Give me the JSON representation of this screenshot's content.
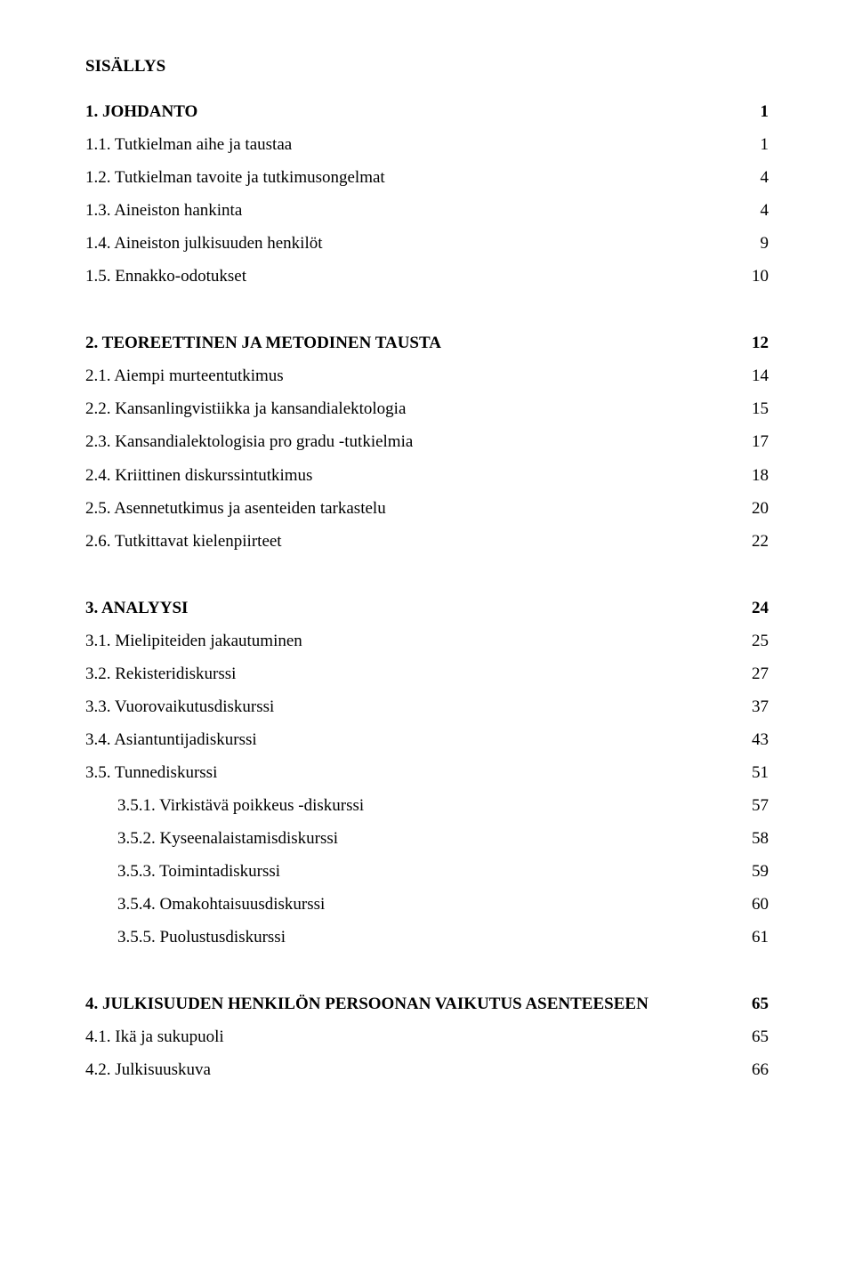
{
  "toc_title": "SISÄLLYS",
  "entries": [
    {
      "label": "1. JOHDANTO",
      "page": "1",
      "bold": true,
      "indent": false,
      "gap_before": false
    },
    {
      "label": "1.1. Tutkielman aihe ja taustaa",
      "page": "1",
      "bold": false,
      "indent": false,
      "gap_before": false
    },
    {
      "label": "1.2. Tutkielman tavoite ja tutkimusongelmat",
      "page": "4",
      "bold": false,
      "indent": false,
      "gap_before": false
    },
    {
      "label": "1.3. Aineiston hankinta",
      "page": "4",
      "bold": false,
      "indent": false,
      "gap_before": false
    },
    {
      "label": "1.4. Aineiston julkisuuden henkilöt",
      "page": "9",
      "bold": false,
      "indent": false,
      "gap_before": false
    },
    {
      "label": "1.5. Ennakko-odotukset",
      "page": "10",
      "bold": false,
      "indent": false,
      "gap_before": false
    },
    {
      "label": "2. TEOREETTINEN JA METODINEN TAUSTA",
      "page": "12",
      "bold": true,
      "indent": false,
      "gap_before": true
    },
    {
      "label": "2.1. Aiempi murteentutkimus",
      "page": "14",
      "bold": false,
      "indent": false,
      "gap_before": false
    },
    {
      "label": "2.2. Kansanlingvistiikka ja kansandialektologia",
      "page": "15",
      "bold": false,
      "indent": false,
      "gap_before": false
    },
    {
      "label": "2.3. Kansandialektologisia pro gradu -tutkielmia",
      "page": "17",
      "bold": false,
      "indent": false,
      "gap_before": false
    },
    {
      "label": "2.4. Kriittinen diskurssintutkimus",
      "page": "18",
      "bold": false,
      "indent": false,
      "gap_before": false
    },
    {
      "label": "2.5. Asennetutkimus ja asenteiden tarkastelu",
      "page": "20",
      "bold": false,
      "indent": false,
      "gap_before": false
    },
    {
      "label": "2.6. Tutkittavat kielenpiirteet",
      "page": "22",
      "bold": false,
      "indent": false,
      "gap_before": false
    },
    {
      "label": "3. ANALYYSI",
      "page": "24",
      "bold": true,
      "indent": false,
      "gap_before": true
    },
    {
      "label": "3.1. Mielipiteiden jakautuminen",
      "page": "25",
      "bold": false,
      "indent": false,
      "gap_before": false
    },
    {
      "label": "3.2. Rekisteridiskurssi",
      "page": "27",
      "bold": false,
      "indent": false,
      "gap_before": false
    },
    {
      "label": "3.3. Vuorovaikutusdiskurssi",
      "page": "37",
      "bold": false,
      "indent": false,
      "gap_before": false
    },
    {
      "label": "3.4. Asiantuntijadiskurssi",
      "page": "43",
      "bold": false,
      "indent": false,
      "gap_before": false
    },
    {
      "label": "3.5. Tunnediskurssi",
      "page": "51",
      "bold": false,
      "indent": false,
      "gap_before": false
    },
    {
      "label": "3.5.1. Virkistävä poikkeus -diskurssi",
      "page": "57",
      "bold": false,
      "indent": true,
      "gap_before": false
    },
    {
      "label": "3.5.2. Kyseenalaistamisdiskurssi",
      "page": "58",
      "bold": false,
      "indent": true,
      "gap_before": false
    },
    {
      "label": "3.5.3. Toimintadiskurssi",
      "page": "59",
      "bold": false,
      "indent": true,
      "gap_before": false
    },
    {
      "label": "3.5.4. Omakohtaisuusdiskurssi",
      "page": "60",
      "bold": false,
      "indent": true,
      "gap_before": false
    },
    {
      "label": "3.5.5. Puolustusdiskurssi",
      "page": "61",
      "bold": false,
      "indent": true,
      "gap_before": false
    },
    {
      "label": "4. JULKISUUDEN HENKILÖN PERSOONAN VAIKUTUS ASENTEESEEN",
      "page": "65",
      "bold": true,
      "indent": false,
      "gap_before": true
    },
    {
      "label": "4.1. Ikä ja sukupuoli",
      "page": "65",
      "bold": false,
      "indent": false,
      "gap_before": false
    },
    {
      "label": "4.2. Julkisuuskuva",
      "page": "66",
      "bold": false,
      "indent": false,
      "gap_before": false
    }
  ]
}
